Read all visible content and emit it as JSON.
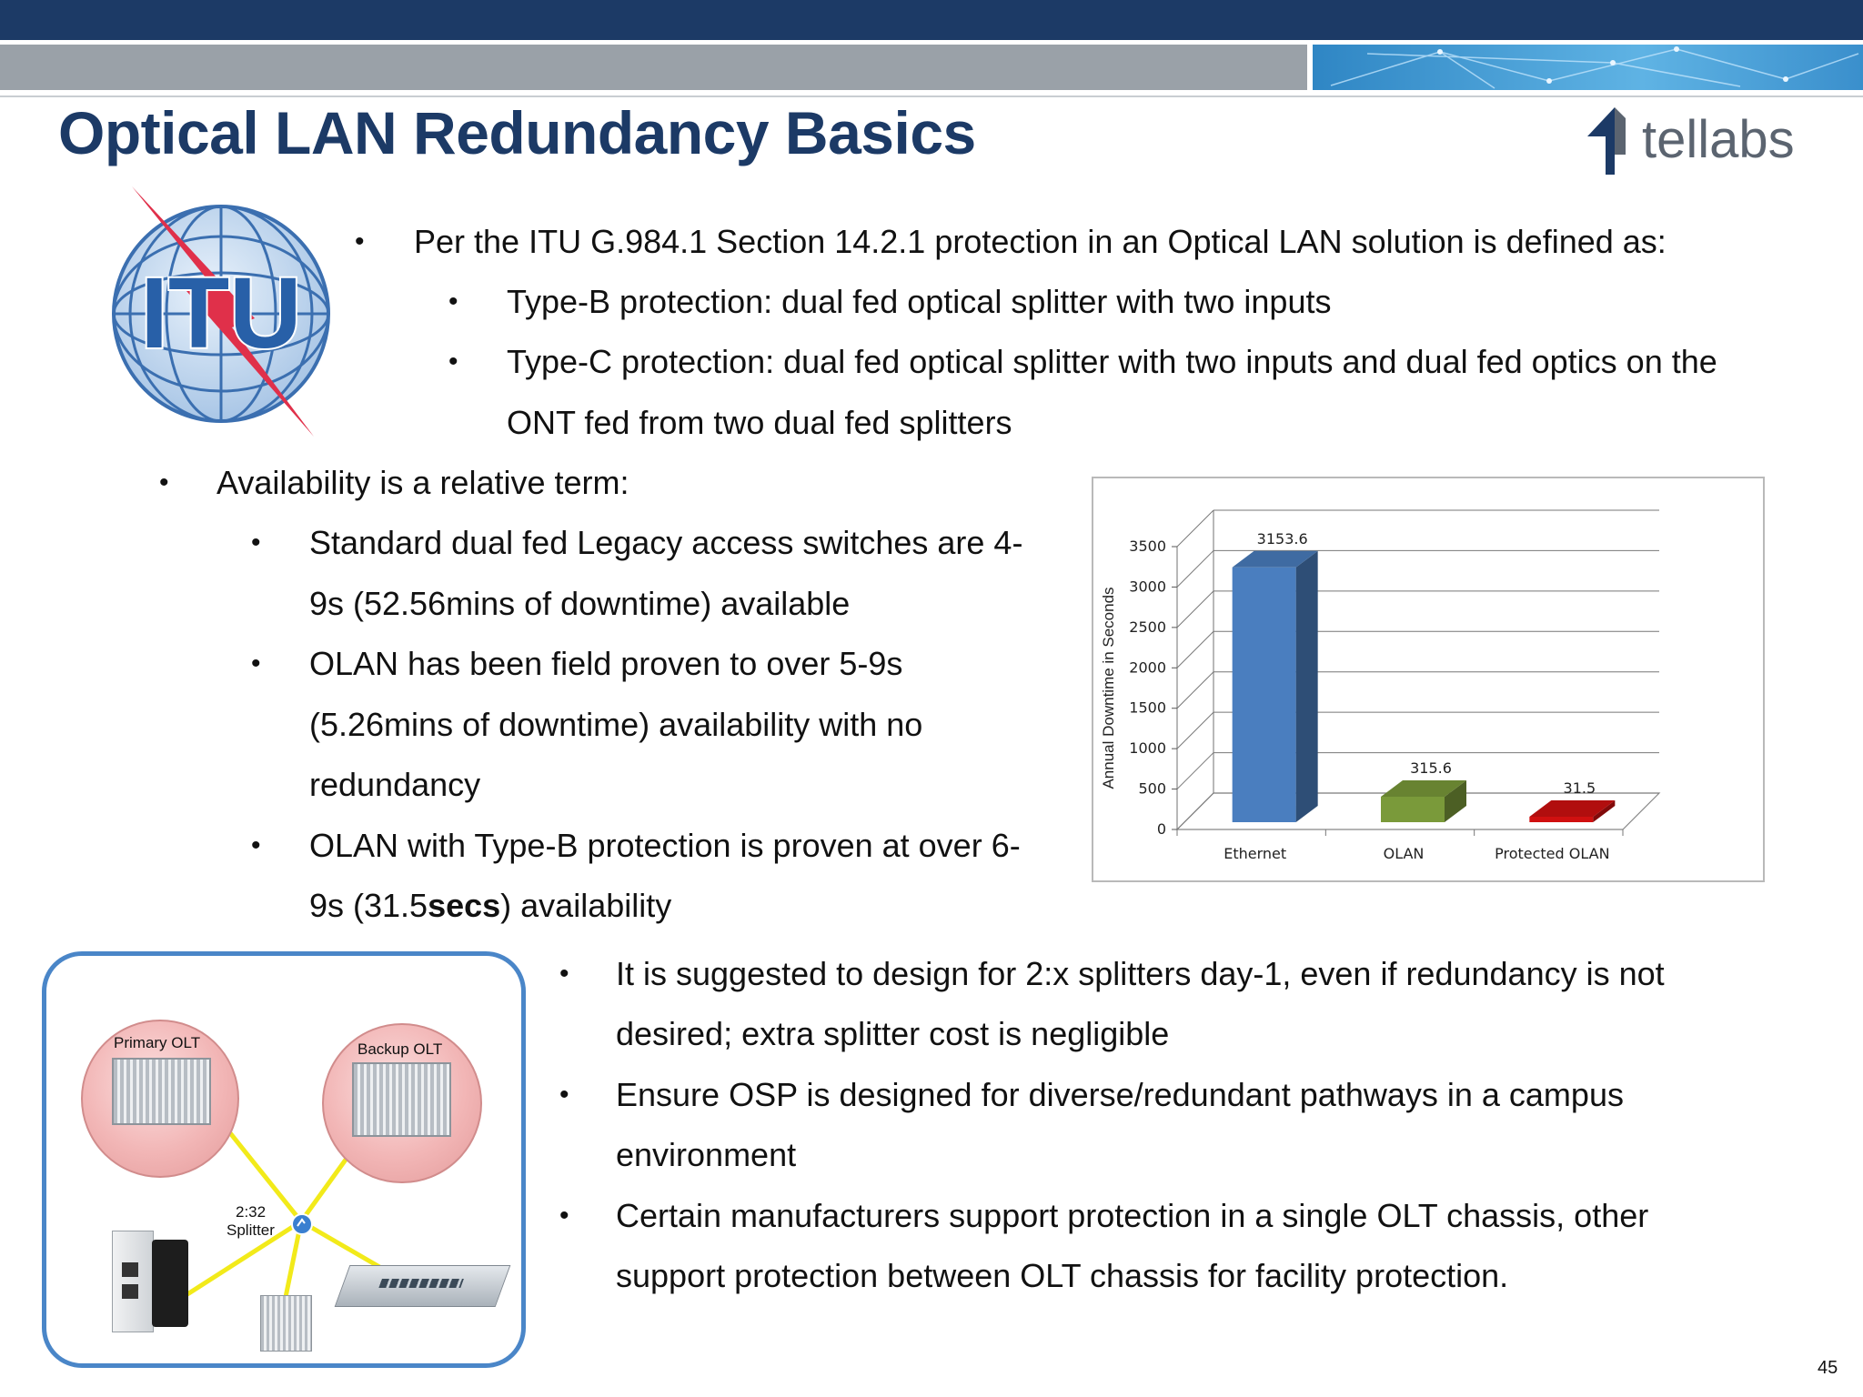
{
  "slide": {
    "title": "Optical LAN Redundancy Basics",
    "logo_text": "tellabs",
    "itu_logo_text": "ITU",
    "page_number": "45"
  },
  "bullets": [
    {
      "text": "Per the ITU G.984.1 Section 14.2.1 protection in an Optical LAN solution is defined as:"
    },
    {
      "text": "Type-B protection: dual fed optical splitter with two inputs"
    },
    {
      "text": "Type-C protection: dual fed optical splitter with two inputs and dual fed optics on the"
    },
    {
      "text": "ONT fed from two dual fed splitters"
    },
    {
      "text": "Availability is a relative term:"
    },
    {
      "text": "Standard dual fed Legacy access switches are 4-"
    },
    {
      "text": "9s (52.56mins of downtime) available"
    },
    {
      "text": "OLAN has been field proven to over 5-9s"
    },
    {
      "text": "(5.26mins of downtime) availability with no"
    },
    {
      "text": "redundancy"
    },
    {
      "text": "OLAN with Type-B protection is proven at over 6-"
    },
    {
      "text_pre": "9s (31.5",
      "text_bold": "secs",
      "text_post": ") availability"
    },
    {
      "text": "It is suggested to design for 2:x splitters day-1, even if redundancy is not"
    },
    {
      "text": "desired; extra splitter cost is negligible"
    },
    {
      "text": "Ensure OSP is designed for diverse/redundant pathways in a campus"
    },
    {
      "text": "environment"
    },
    {
      "text": "Certain manufacturers support protection in a single OLT chassis, other"
    },
    {
      "text": "support protection between OLT chassis for facility protection."
    }
  ],
  "bullet_char": "•",
  "diagram": {
    "primary_olt": "Primary OLT",
    "backup_olt": "Backup OLT",
    "splitter_ratio": "2:32",
    "splitter_word": "Splitter"
  },
  "chart_data": {
    "type": "bar",
    "categories": [
      "Ethernet",
      "OLAN",
      "Protected OLAN"
    ],
    "values": [
      3153.6,
      315.6,
      31.5
    ],
    "value_labels": [
      "3153.6",
      "315.6",
      "31.5"
    ],
    "ylabel": "Annual Downtime in Seconds",
    "xlabel": "",
    "ylim": [
      0,
      3500
    ],
    "yticks": [
      0,
      500,
      1000,
      1500,
      2000,
      2500,
      3000,
      3500
    ],
    "colors": [
      "#4a7ebf",
      "#7a9a3a",
      "#d01010"
    ],
    "grid": true,
    "style": "3d"
  }
}
